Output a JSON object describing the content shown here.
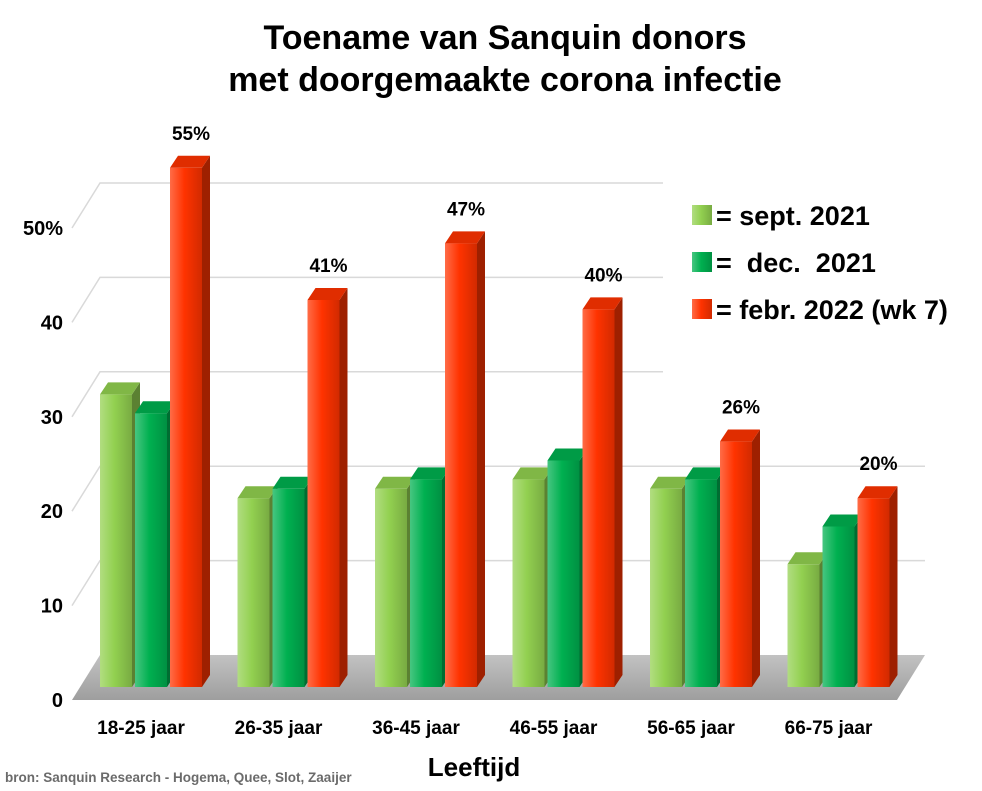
{
  "chart_data": {
    "type": "bar",
    "title": [
      "Toename van Sanquin donors",
      "met doorgemaakte corona infectie"
    ],
    "categories": [
      "18-25 jaar",
      "26-35 jaar",
      "36-45 jaar",
      "46-55 jaar",
      "56-65 jaar",
      "66-75 jaar"
    ],
    "series": [
      {
        "name": "= sept. 2021",
        "color": "#92d050",
        "values": [
          31,
          20,
          21,
          22,
          21,
          13
        ]
      },
      {
        "name": "=  dec.  2021",
        "color": "#00b050",
        "values": [
          29,
          21,
          22,
          24,
          22,
          17
        ]
      },
      {
        "name": "= febr. 2022 (wk 7)",
        "color": "#ff3300",
        "values": [
          55,
          41,
          47,
          40,
          26,
          20
        ],
        "data_labels": [
          "55%",
          "41%",
          "47%",
          "40%",
          "26%",
          "20%"
        ]
      }
    ],
    "xlabel": "Leeftijd",
    "yticks": [
      "0",
      "10",
      "20",
      "30",
      "40",
      "50%"
    ],
    "ytick_values": [
      0,
      10,
      20,
      30,
      40,
      50
    ],
    "ylim": [
      0,
      50
    ],
    "grid": true,
    "legend_position": "top-right"
  },
  "source": "bron: Sanquin Research - Hogema, Quee, Slot, Zaaijer"
}
